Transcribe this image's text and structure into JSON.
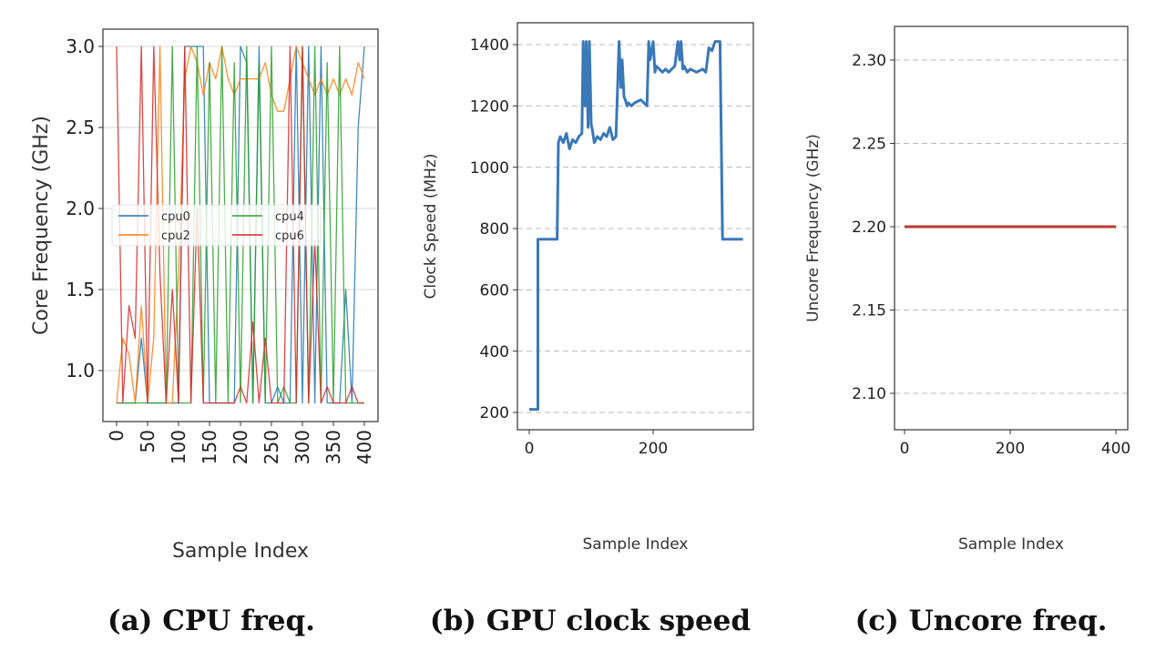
{
  "chart_data": [
    {
      "type": "line",
      "caption": "(a) CPU freq.",
      "xlabel": "Sample Index",
      "ylabel": "Core Frequency (GHz)",
      "xlim": [
        0,
        400
      ],
      "ylim": [
        0.7,
        3.05
      ],
      "xticks": [
        0,
        50,
        100,
        150,
        200,
        250,
        300,
        350,
        400
      ],
      "xtick_labels": [
        "0",
        "50",
        "100",
        "150",
        "200",
        "250",
        "300",
        "350",
        "400"
      ],
      "yticks": [
        1.0,
        1.5,
        2.0,
        2.5,
        3.0
      ],
      "ytick_labels": [
        "1.0",
        "1.5",
        "2.0",
        "2.5",
        "3.0"
      ],
      "grid": "solid-horizontal",
      "legend": "center-left",
      "x": [
        0,
        10,
        20,
        30,
        40,
        50,
        60,
        70,
        80,
        90,
        100,
        110,
        120,
        130,
        140,
        150,
        160,
        170,
        180,
        190,
        200,
        210,
        220,
        230,
        240,
        250,
        260,
        270,
        280,
        290,
        300,
        310,
        320,
        330,
        340,
        350,
        360,
        370,
        380,
        390,
        400
      ],
      "series": [
        {
          "name": "cpu0",
          "color": "#1f77b4",
          "values": [
            0.8,
            0.8,
            0.8,
            0.8,
            1.2,
            0.8,
            0.8,
            0.8,
            0.8,
            0.8,
            0.8,
            3.0,
            3.0,
            3.0,
            3.0,
            0.8,
            0.8,
            0.8,
            0.8,
            0.8,
            3.0,
            2.9,
            0.8,
            3.0,
            0.8,
            0.8,
            0.9,
            0.8,
            0.8,
            3.0,
            0.8,
            3.0,
            0.8,
            3.0,
            0.8,
            0.8,
            0.8,
            1.5,
            0.8,
            2.5,
            3.0
          ]
        },
        {
          "name": "cpu2",
          "color": "#ff7f0e",
          "values": [
            0.8,
            1.2,
            1.1,
            0.8,
            1.4,
            0.8,
            1.2,
            3.0,
            0.8,
            0.8,
            1.6,
            2.8,
            3.0,
            2.9,
            2.7,
            2.9,
            2.8,
            3.0,
            2.8,
            2.7,
            2.8,
            2.8,
            2.8,
            2.8,
            2.9,
            2.7,
            2.6,
            2.6,
            2.8,
            3.0,
            2.9,
            2.8,
            2.7,
            2.8,
            2.7,
            2.8,
            2.7,
            2.8,
            2.7,
            2.9,
            2.8
          ]
        },
        {
          "name": "cpu4",
          "color": "#2ca02c",
          "values": [
            0.8,
            0.8,
            0.8,
            0.8,
            0.8,
            0.8,
            0.8,
            0.8,
            0.8,
            3.0,
            0.8,
            0.8,
            0.8,
            3.0,
            0.8,
            2.9,
            0.8,
            3.0,
            0.8,
            2.9,
            0.8,
            3.0,
            0.8,
            2.9,
            0.8,
            3.0,
            0.8,
            0.9,
            0.8,
            0.8,
            3.0,
            0.8,
            3.0,
            0.8,
            2.9,
            0.8,
            3.0,
            0.8,
            0.8,
            0.8,
            0.8
          ]
        },
        {
          "name": "cpu6",
          "color": "#d62728",
          "values": [
            3.0,
            0.8,
            1.4,
            1.2,
            3.0,
            0.8,
            3.0,
            1.6,
            0.8,
            1.5,
            0.8,
            3.0,
            0.8,
            2.0,
            0.8,
            0.8,
            0.8,
            0.8,
            0.8,
            0.8,
            0.9,
            0.8,
            1.3,
            0.8,
            1.2,
            0.8,
            0.8,
            0.8,
            3.0,
            0.8,
            3.0,
            0.8,
            1.8,
            0.8,
            0.9,
            0.8,
            0.8,
            0.8,
            0.9,
            0.8,
            0.8
          ]
        }
      ]
    },
    {
      "type": "line",
      "caption": "(b) GPU clock speed",
      "xlabel": "Sample Index",
      "ylabel": "Clock Speed (MHz)",
      "xlim": [
        -20,
        360
      ],
      "ylim": [
        140,
        1470
      ],
      "xticks": [
        0,
        200
      ],
      "xtick_labels": [
        "0",
        "200"
      ],
      "yticks": [
        200,
        400,
        600,
        800,
        1000,
        1200,
        1400
      ],
      "ytick_labels": [
        "200",
        "400",
        "600",
        "800",
        "1000",
        "1200",
        "1400"
      ],
      "grid": "dashed-horizontal",
      "series": [
        {
          "color": "#3a78b8",
          "x": [
            0,
            14,
            14,
            45,
            47,
            50,
            55,
            60,
            65,
            70,
            75,
            80,
            85,
            87,
            90,
            92,
            95,
            97,
            100,
            102,
            105,
            110,
            115,
            120,
            125,
            130,
            135,
            140,
            145,
            148,
            150,
            153,
            155,
            158,
            160,
            165,
            170,
            180,
            190,
            193,
            195,
            200,
            203,
            205,
            210,
            215,
            220,
            225,
            230,
            235,
            240,
            243,
            245,
            248,
            250,
            255,
            260,
            270,
            280,
            285,
            290,
            295,
            300,
            305,
            308,
            312,
            345
          ],
          "values": [
            210,
            210,
            765,
            765,
            1080,
            1100,
            1080,
            1110,
            1060,
            1090,
            1080,
            1100,
            1110,
            1410,
            1200,
            1410,
            1130,
            1410,
            1140,
            1120,
            1080,
            1100,
            1090,
            1110,
            1100,
            1130,
            1090,
            1100,
            1410,
            1260,
            1350,
            1230,
            1220,
            1200,
            1210,
            1200,
            1210,
            1220,
            1200,
            1410,
            1350,
            1410,
            1310,
            1330,
            1320,
            1310,
            1320,
            1310,
            1320,
            1330,
            1410,
            1350,
            1410,
            1320,
            1330,
            1310,
            1320,
            1310,
            1320,
            1310,
            1390,
            1380,
            1410,
            1410,
            1410,
            765,
            765
          ]
        }
      ]
    },
    {
      "type": "line",
      "caption": "(c) Uncore freq.",
      "xlabel": "Sample Index",
      "ylabel": "Uncore Frequency (GHz)",
      "xlim": [
        -20,
        420
      ],
      "ylim": [
        2.08,
        2.32
      ],
      "xticks": [
        0,
        200,
        400
      ],
      "xtick_labels": [
        "0",
        "200",
        "400"
      ],
      "yticks": [
        2.1,
        2.15,
        2.2,
        2.25,
        2.3
      ],
      "ytick_labels": [
        "2.10",
        "2.15",
        "2.20",
        "2.25",
        "2.30"
      ],
      "grid": "dashed-horizontal",
      "series": [
        {
          "color": "#c0392b",
          "x": [
            0,
            400
          ],
          "values": [
            2.2,
            2.2
          ]
        }
      ]
    }
  ]
}
